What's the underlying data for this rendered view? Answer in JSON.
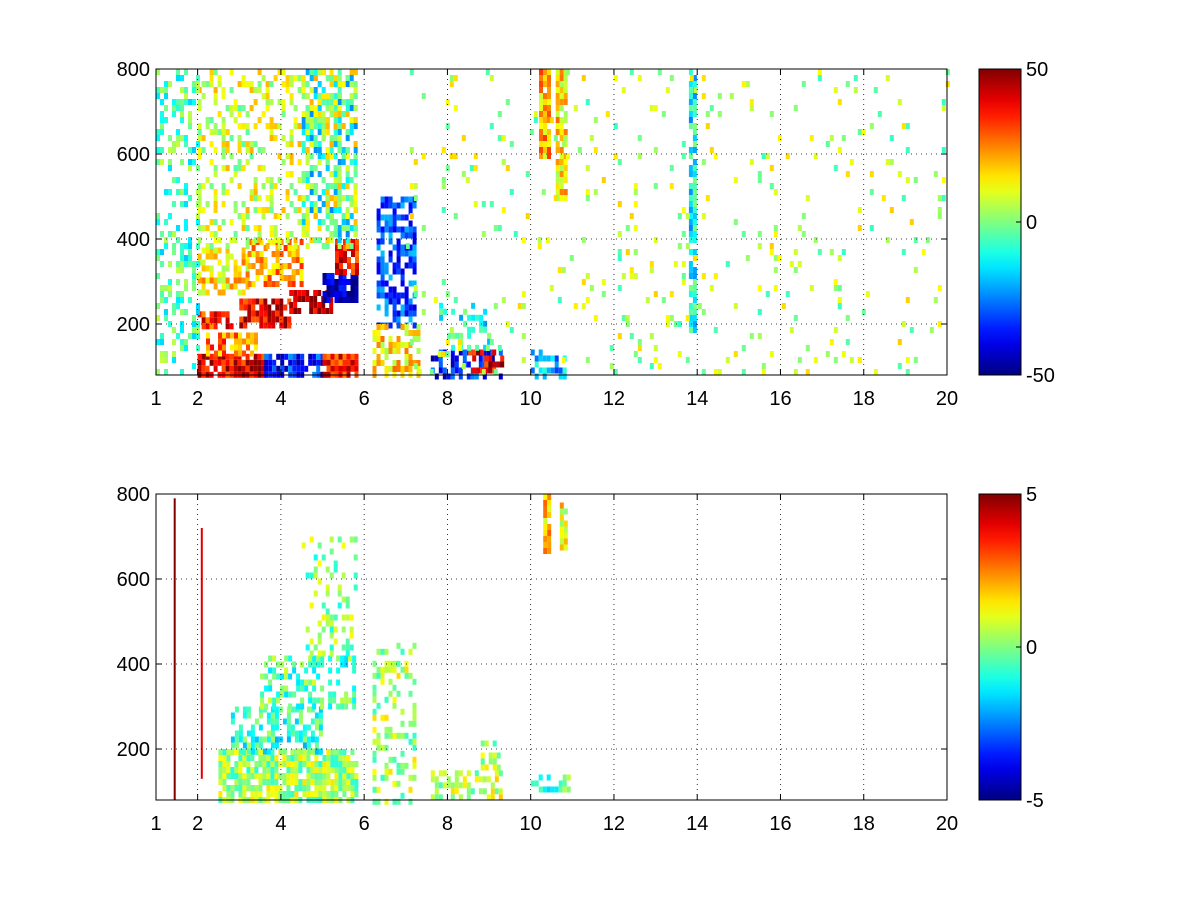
{
  "chart_data": [
    {
      "type": "heatmap",
      "title": "",
      "xlabel": "",
      "ylabel": "",
      "xlim": [
        1,
        20
      ],
      "ylim": [
        80,
        800
      ],
      "xticks": [
        "1",
        "2",
        "4",
        "6",
        "8",
        "10",
        "12",
        "14",
        "16",
        "18",
        "20"
      ],
      "yticks": [
        "200",
        "400",
        "600",
        "800"
      ],
      "grid": true,
      "colorbar": {
        "colormap": "jet",
        "clim": [
          -50,
          50
        ],
        "ticks": [
          "50",
          "0",
          "-50"
        ]
      },
      "regions": [
        {
          "x": [
            2.0,
            3.6
          ],
          "y": [
            80,
            130
          ],
          "value": 40,
          "density": 0.85
        },
        {
          "x": [
            3.6,
            5.0
          ],
          "y": [
            80,
            130
          ],
          "value": -35,
          "density": 0.85
        },
        {
          "x": [
            5.0,
            5.8
          ],
          "y": [
            80,
            130
          ],
          "value": 35,
          "density": 0.85
        },
        {
          "x": [
            2.2,
            3.4
          ],
          "y": [
            130,
            180
          ],
          "value": 25,
          "density": 0.7
        },
        {
          "x": [
            2.0,
            2.8
          ],
          "y": [
            190,
            230
          ],
          "value": 35,
          "density": 0.8
        },
        {
          "x": [
            3.0,
            4.2
          ],
          "y": [
            200,
            260
          ],
          "value": 40,
          "density": 0.8
        },
        {
          "x": [
            4.2,
            5.2
          ],
          "y": [
            230,
            280
          ],
          "value": 42,
          "density": 0.8
        },
        {
          "x": [
            5.0,
            5.8
          ],
          "y": [
            250,
            320
          ],
          "value": -45,
          "density": 0.85
        },
        {
          "x": [
            5.3,
            5.8
          ],
          "y": [
            320,
            400
          ],
          "value": 38,
          "density": 0.8
        },
        {
          "x": [
            2.0,
            3.2
          ],
          "y": [
            280,
            380
          ],
          "value": 15,
          "density": 0.6
        },
        {
          "x": [
            3.2,
            4.5
          ],
          "y": [
            300,
            400
          ],
          "value": 22,
          "density": 0.6
        },
        {
          "x": [
            4.5,
            5.8
          ],
          "y": [
            400,
            800
          ],
          "value": -12,
          "density": 0.45
        },
        {
          "x": [
            2.0,
            5.8
          ],
          "y": [
            380,
            800
          ],
          "value": 8,
          "density": 0.35
        },
        {
          "x": [
            1.0,
            2.0
          ],
          "y": [
            80,
            800
          ],
          "value": -5,
          "density": 0.3
        },
        {
          "x": [
            6.3,
            7.2
          ],
          "y": [
            200,
            500
          ],
          "value": -30,
          "density": 0.6
        },
        {
          "x": [
            6.2,
            7.3
          ],
          "y": [
            80,
            200
          ],
          "value": 15,
          "density": 0.6
        },
        {
          "x": [
            7.6,
            9.3
          ],
          "y": [
            80,
            140
          ],
          "value": -35,
          "density": 0.6
        },
        {
          "x": [
            8.5,
            9.3
          ],
          "y": [
            90,
            140
          ],
          "value": 40,
          "density": 0.5
        },
        {
          "x": [
            7.8,
            9.0
          ],
          "y": [
            140,
            250
          ],
          "value": -10,
          "density": 0.35
        },
        {
          "x": [
            10.0,
            10.8
          ],
          "y": [
            80,
            140
          ],
          "value": -20,
          "density": 0.5
        },
        {
          "x": [
            10.2,
            10.4
          ],
          "y": [
            600,
            800
          ],
          "value": 20,
          "density": 0.9
        },
        {
          "x": [
            10.6,
            10.8
          ],
          "y": [
            500,
            800
          ],
          "value": 15,
          "density": 0.9
        },
        {
          "x": [
            13.8,
            13.95
          ],
          "y": [
            180,
            800
          ],
          "value": -12,
          "density": 0.8
        },
        {
          "x": [
            7.0,
            20.0
          ],
          "y": [
            80,
            800
          ],
          "value": 5,
          "density": 0.05
        }
      ]
    },
    {
      "type": "heatmap",
      "title": "",
      "xlabel": "",
      "ylabel": "",
      "xlim": [
        1,
        20
      ],
      "ylim": [
        80,
        800
      ],
      "xticks": [
        "1",
        "2",
        "4",
        "6",
        "8",
        "10",
        "12",
        "14",
        "16",
        "18",
        "20"
      ],
      "yticks": [
        "200",
        "400",
        "600",
        "800"
      ],
      "grid": true,
      "colorbar": {
        "colormap": "jet",
        "clim": [
          -5,
          5
        ],
        "ticks": [
          "5",
          "0",
          "-5"
        ]
      },
      "regions": [
        {
          "x": [
            2.5,
            5.8
          ],
          "y": [
            80,
            200
          ],
          "value": 0.3,
          "density": 0.85
        },
        {
          "x": [
            2.8,
            5.0
          ],
          "y": [
            200,
            300
          ],
          "value": -0.8,
          "density": 0.6
        },
        {
          "x": [
            3.5,
            5.8
          ],
          "y": [
            300,
            420
          ],
          "value": -0.4,
          "density": 0.45
        },
        {
          "x": [
            4.5,
            5.8
          ],
          "y": [
            420,
            700
          ],
          "value": 0.1,
          "density": 0.25
        },
        {
          "x": [
            6.2,
            7.2
          ],
          "y": [
            80,
            450
          ],
          "value": 0.4,
          "density": 0.35
        },
        {
          "x": [
            7.6,
            9.3
          ],
          "y": [
            80,
            150
          ],
          "value": 0.6,
          "density": 0.6
        },
        {
          "x": [
            8.8,
            9.2
          ],
          "y": [
            150,
            220
          ],
          "value": 0.5,
          "density": 0.6
        },
        {
          "x": [
            10.0,
            11.0
          ],
          "y": [
            110,
            140
          ],
          "value": -0.5,
          "density": 0.5
        },
        {
          "x": [
            10.3,
            10.4
          ],
          "y": [
            670,
            800
          ],
          "value": 1.8,
          "density": 0.9
        },
        {
          "x": [
            10.7,
            10.8
          ],
          "y": [
            680,
            780
          ],
          "value": 1.2,
          "density": 0.9
        }
      ],
      "stripes": [
        {
          "x": 1.45,
          "y": [
            80,
            790
          ],
          "value": 5
        },
        {
          "x": 2.1,
          "y": [
            130,
            720
          ],
          "value": 4
        }
      ]
    }
  ]
}
